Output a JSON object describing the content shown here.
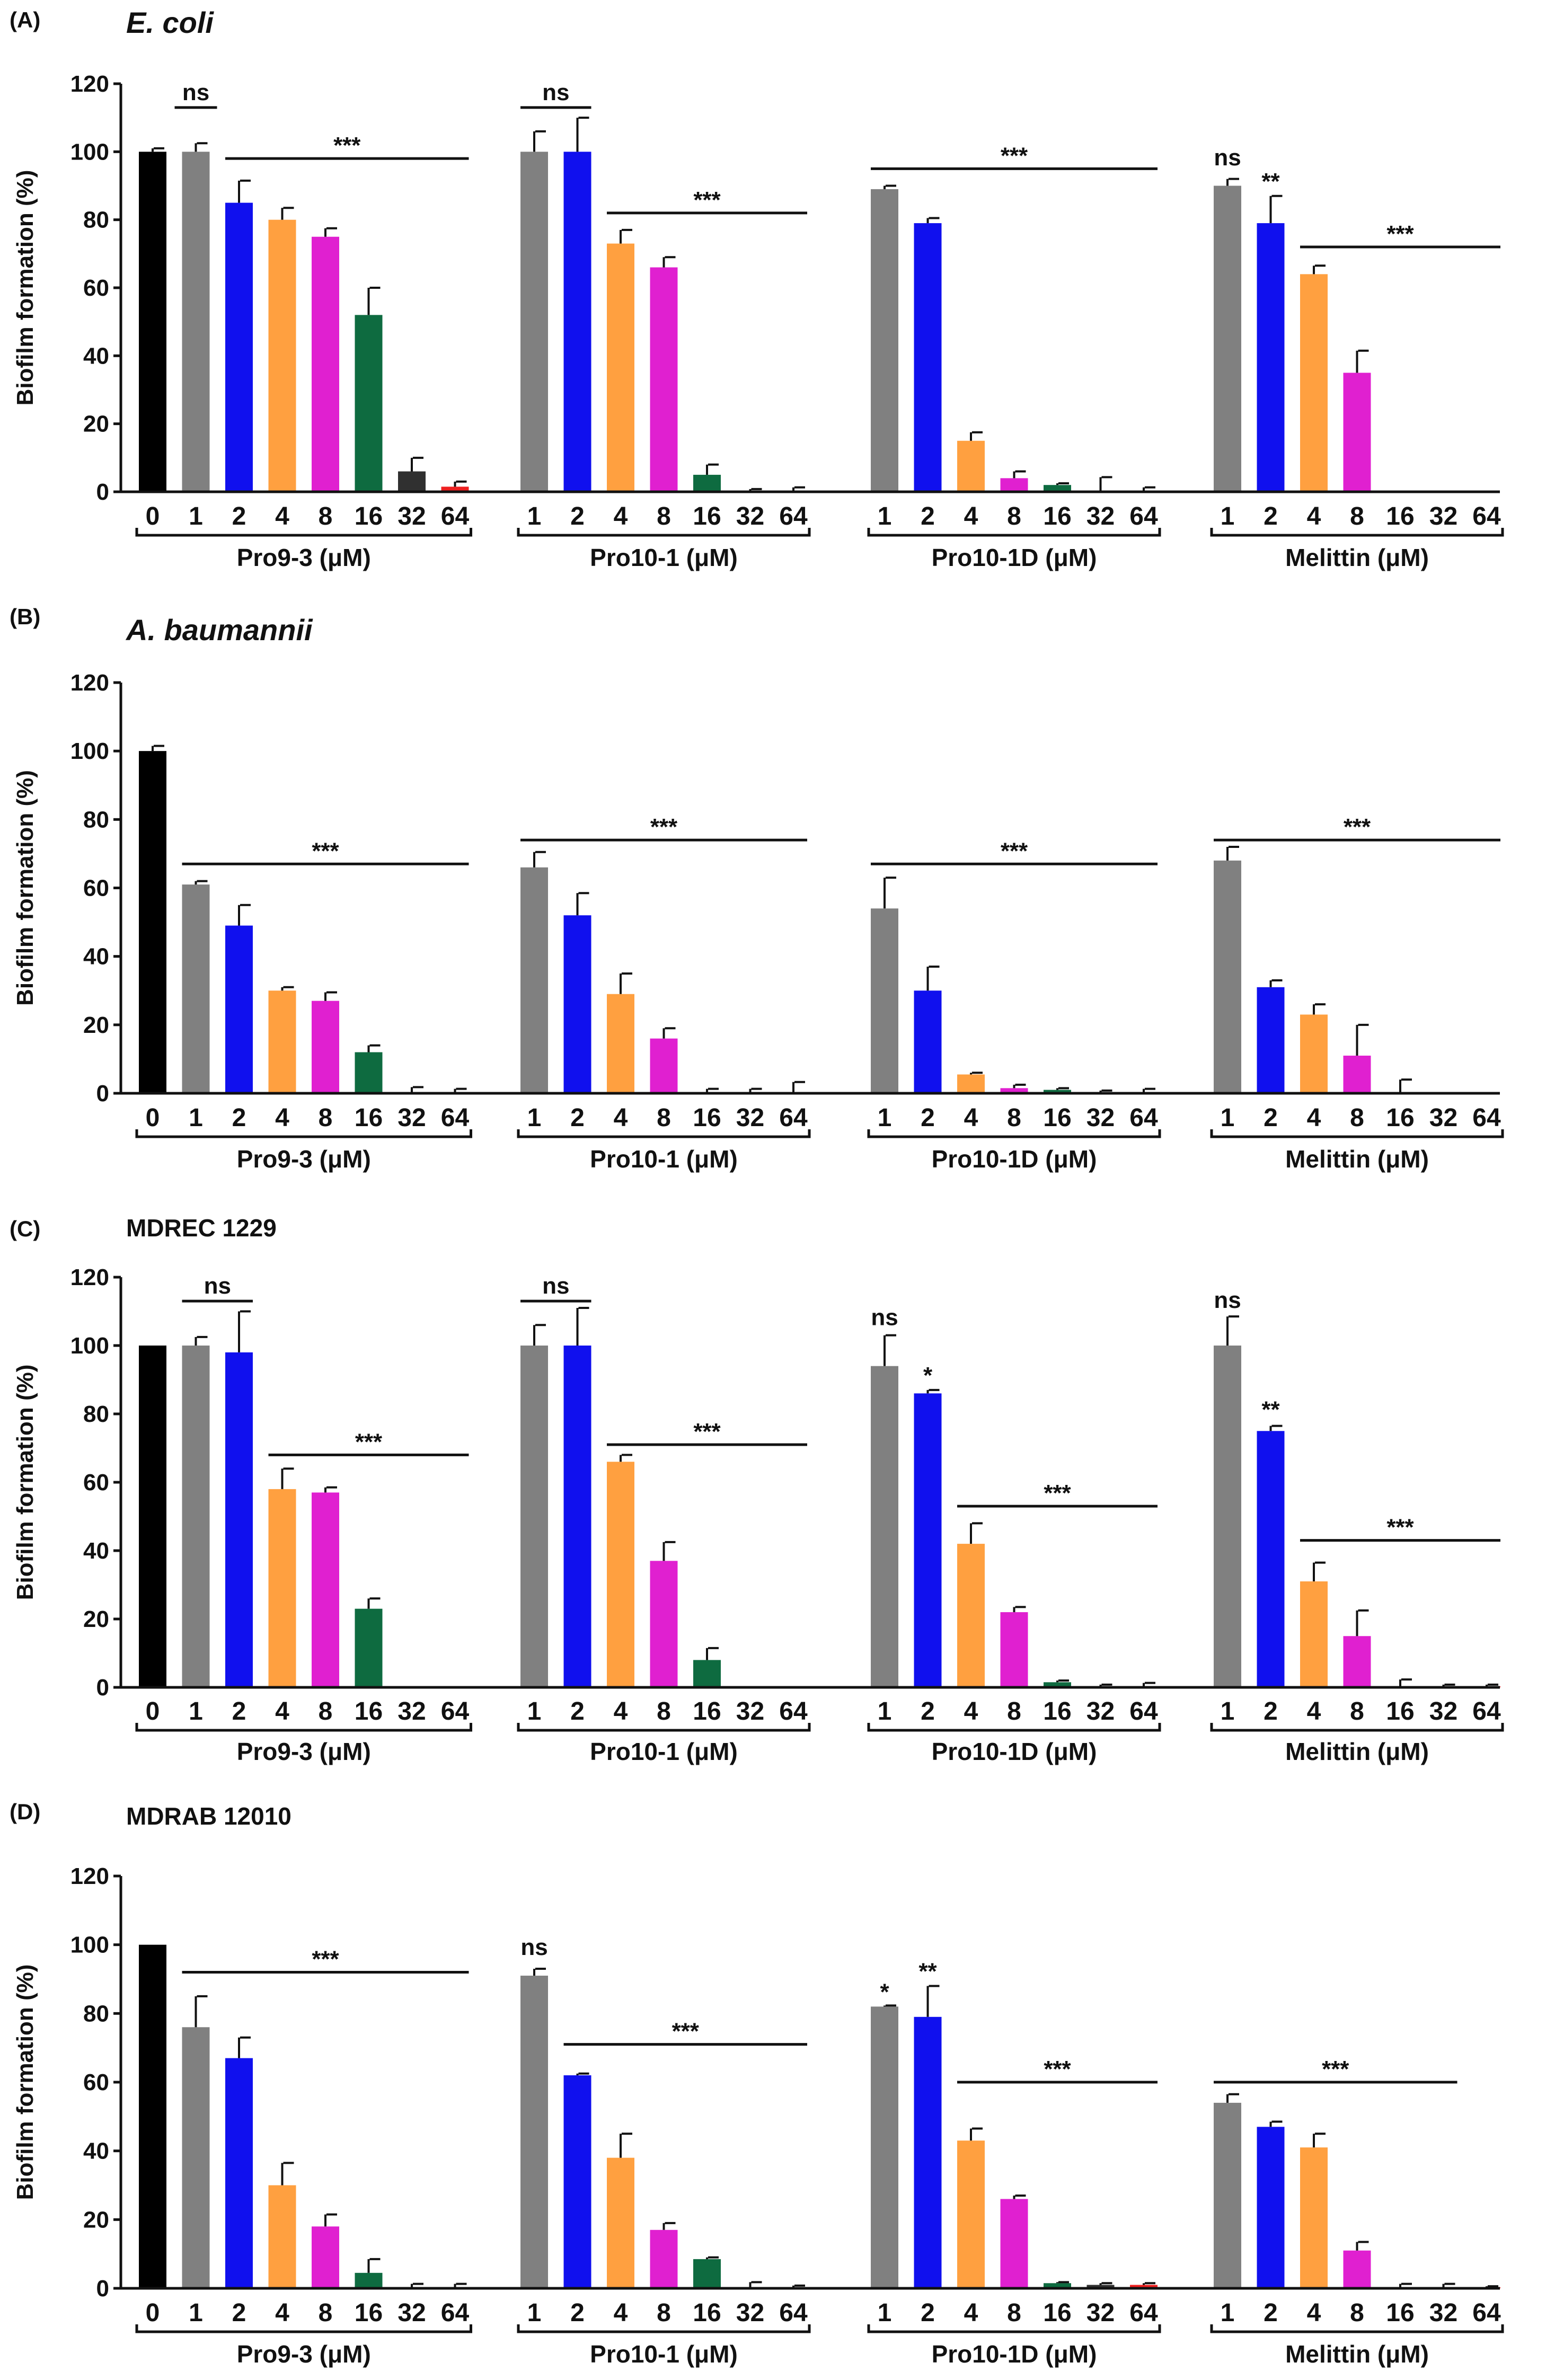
{
  "chart_data": [
    {
      "type": "bar",
      "panel": "(A)",
      "title": "E. coli",
      "title_style": "italic",
      "ylabel": "Biofilm formation (%)",
      "ylim": [
        0,
        120
      ],
      "yticks": [
        "0",
        "20",
        "40",
        "60",
        "80",
        "100",
        "120"
      ],
      "colors": {
        "0": "#000000",
        "1": "#808080",
        "2": "#1010ee",
        "4": "#ffa040",
        "8": "#e020d0",
        "16": "#0e6b40",
        "32": "#303030",
        "64": "#ee2020"
      },
      "groups": [
        {
          "label": "Pro9-3 (μM)",
          "categories": [
            "0",
            "1",
            "2",
            "4",
            "8",
            "16",
            "32",
            "64"
          ],
          "values": [
            100,
            100,
            85,
            80,
            75,
            52,
            6,
            1.5
          ],
          "errors": [
            1,
            2.5,
            6.5,
            3.5,
            2.5,
            8,
            4,
            1.5
          ]
        },
        {
          "label": "Pro10-1 (μM)",
          "categories": [
            "1",
            "2",
            "4",
            "8",
            "16",
            "32",
            "64"
          ],
          "values": [
            100,
            100,
            73,
            66,
            5,
            0.3,
            0.3
          ],
          "errors": [
            6,
            10,
            4,
            3,
            3,
            0.5,
            1
          ]
        },
        {
          "label": "Pro10-1D (μM)",
          "categories": [
            "1",
            "2",
            "4",
            "8",
            "16",
            "32",
            "64"
          ],
          "values": [
            89,
            79,
            15,
            4,
            2,
            0.3,
            0.3
          ],
          "errors": [
            1,
            1.5,
            2.5,
            2,
            0.5,
            4,
            1
          ]
        },
        {
          "label": "Melittin (μM)",
          "categories": [
            "1",
            "2",
            "4",
            "8",
            "16",
            "32",
            "64"
          ],
          "values": [
            90,
            79,
            64,
            35,
            0,
            0,
            0
          ],
          "errors": [
            2,
            8,
            2.5,
            6.5,
            0,
            0,
            0
          ]
        }
      ],
      "annotations": [
        {
          "text": "ns",
          "type": "line",
          "group": 0,
          "from": 1,
          "to": 1,
          "level": 113
        },
        {
          "text": "***",
          "type": "line",
          "group": 0,
          "from": 2,
          "to": 7,
          "level": 98
        },
        {
          "text": "ns",
          "type": "line",
          "group": 1,
          "from": 0,
          "to": 1,
          "level": 113
        },
        {
          "text": "***",
          "type": "line",
          "group": 1,
          "from": 2,
          "to": 6,
          "level": 82
        },
        {
          "text": "***",
          "type": "line",
          "group": 2,
          "from": 0,
          "to": 6,
          "level": 95
        },
        {
          "text": "ns",
          "type": "mark",
          "group": 3,
          "at": 0,
          "level": 96
        },
        {
          "text": "**",
          "type": "mark",
          "group": 3,
          "at": 1,
          "level": 89
        },
        {
          "text": "***",
          "type": "line",
          "group": 3,
          "from": 2,
          "to": 6,
          "level": 72
        }
      ]
    },
    {
      "type": "bar",
      "panel": "(B)",
      "title": "A. baumannii",
      "title_style": "italic",
      "ylabel": "Biofilm formation (%)",
      "ylim": [
        0,
        120
      ],
      "yticks": [
        "0",
        "20",
        "40",
        "60",
        "80",
        "100",
        "120"
      ],
      "colors": {
        "0": "#000000",
        "1": "#808080",
        "2": "#1010ee",
        "4": "#ffa040",
        "8": "#e020d0",
        "16": "#0e6b40",
        "32": "#303030",
        "64": "#ee2020"
      },
      "groups": [
        {
          "label": "Pro9-3 (μM)",
          "categories": [
            "0",
            "1",
            "2",
            "4",
            "8",
            "16",
            "32",
            "64"
          ],
          "values": [
            100,
            61,
            49,
            30,
            27,
            12,
            0.3,
            0.3
          ],
          "errors": [
            1.5,
            1,
            6,
            1,
            2.5,
            2,
            1.5,
            1
          ]
        },
        {
          "label": "Pro10-1 (μM)",
          "categories": [
            "1",
            "2",
            "4",
            "8",
            "16",
            "32",
            "64"
          ],
          "values": [
            66,
            52,
            29,
            16,
            0.3,
            0.3,
            0.3
          ],
          "errors": [
            4.5,
            6.5,
            6,
            3,
            1,
            1,
            3
          ]
        },
        {
          "label": "Pro10-1D (μM)",
          "categories": [
            "1",
            "2",
            "4",
            "8",
            "16",
            "32",
            "64"
          ],
          "values": [
            54,
            30,
            5.5,
            1.5,
            1,
            0.3,
            0.3
          ],
          "errors": [
            9,
            7,
            0.5,
            1,
            0.5,
            0.5,
            1
          ]
        },
        {
          "label": "Melittin (μM)",
          "categories": [
            "1",
            "2",
            "4",
            "8",
            "16",
            "32",
            "64"
          ],
          "values": [
            68,
            31,
            23,
            11,
            0,
            0,
            0
          ],
          "errors": [
            4,
            2,
            3,
            9,
            4,
            0,
            0
          ]
        }
      ],
      "annotations": [
        {
          "text": "***",
          "type": "line",
          "group": 0,
          "from": 1,
          "to": 7,
          "level": 67
        },
        {
          "text": "***",
          "type": "line",
          "group": 1,
          "from": 0,
          "to": 6,
          "level": 74
        },
        {
          "text": "***",
          "type": "line",
          "group": 2,
          "from": 0,
          "to": 6,
          "level": 67
        },
        {
          "text": "***",
          "type": "line",
          "group": 3,
          "from": 0,
          "to": 6,
          "level": 74
        }
      ]
    },
    {
      "type": "bar",
      "panel": "(C)",
      "title": "MDREC 1229",
      "title_style": "normal",
      "ylabel": "Biofilm formation (%)",
      "ylim": [
        0,
        120
      ],
      "yticks": [
        "0",
        "20",
        "40",
        "60",
        "80",
        "100",
        "120"
      ],
      "colors": {
        "0": "#000000",
        "1": "#808080",
        "2": "#1010ee",
        "4": "#ffa040",
        "8": "#e020d0",
        "16": "#0e6b40",
        "32": "#303030",
        "64": "#ee2020"
      },
      "groups": [
        {
          "label": "Pro9-3 (μM)",
          "categories": [
            "0",
            "1",
            "2",
            "4",
            "8",
            "16",
            "32",
            "64"
          ],
          "values": [
            100,
            100,
            98,
            58,
            57,
            23,
            0.3,
            0
          ],
          "errors": [
            0,
            2.5,
            12,
            6,
            1.5,
            3,
            0,
            0
          ]
        },
        {
          "label": "Pro10-1 (μM)",
          "categories": [
            "1",
            "2",
            "4",
            "8",
            "16",
            "32",
            "64"
          ],
          "values": [
            100,
            100,
            66,
            37,
            8,
            0.3,
            0.3
          ],
          "errors": [
            6,
            11,
            2,
            5.5,
            3.5,
            0,
            0
          ]
        },
        {
          "label": "Pro10-1D (μM)",
          "categories": [
            "1",
            "2",
            "4",
            "8",
            "16",
            "32",
            "64"
          ],
          "values": [
            94,
            86,
            42,
            22,
            1.5,
            0.3,
            0.3
          ],
          "errors": [
            9,
            1,
            6,
            1.5,
            0.5,
            0.5,
            1
          ]
        },
        {
          "label": "Melittin (μM)",
          "categories": [
            "1",
            "2",
            "4",
            "8",
            "16",
            "32",
            "64"
          ],
          "values": [
            100,
            75,
            31,
            15,
            0.3,
            0.3,
            0.3
          ],
          "errors": [
            8.5,
            1.5,
            5.5,
            7.5,
            2,
            0.5,
            0.5
          ]
        }
      ],
      "annotations": [
        {
          "text": "ns",
          "type": "line",
          "group": 0,
          "from": 1,
          "to": 2,
          "level": 113
        },
        {
          "text": "***",
          "type": "line",
          "group": 0,
          "from": 3,
          "to": 7,
          "level": 68
        },
        {
          "text": "ns",
          "type": "line",
          "group": 1,
          "from": 0,
          "to": 1,
          "level": 113
        },
        {
          "text": "***",
          "type": "line",
          "group": 1,
          "from": 2,
          "to": 6,
          "level": 71
        },
        {
          "text": "ns",
          "type": "mark",
          "group": 2,
          "at": 0,
          "level": 106
        },
        {
          "text": "*",
          "type": "mark",
          "group": 2,
          "at": 1,
          "level": 89
        },
        {
          "text": "***",
          "type": "line",
          "group": 2,
          "from": 2,
          "to": 6,
          "level": 53
        },
        {
          "text": "ns",
          "type": "mark",
          "group": 3,
          "at": 0,
          "level": 111
        },
        {
          "text": "**",
          "type": "mark",
          "group": 3,
          "at": 1,
          "level": 79
        },
        {
          "text": "***",
          "type": "line",
          "group": 3,
          "from": 2,
          "to": 6,
          "level": 43
        }
      ]
    },
    {
      "type": "bar",
      "panel": "(D)",
      "title": "MDRAB 12010",
      "title_style": "normal",
      "ylabel": "Biofilm formation (%)",
      "ylim": [
        0,
        120
      ],
      "yticks": [
        "0",
        "20",
        "40",
        "60",
        "80",
        "100",
        "120"
      ],
      "colors": {
        "0": "#000000",
        "1": "#808080",
        "2": "#1010ee",
        "4": "#ffa040",
        "8": "#e020d0",
        "16": "#0e6b40",
        "32": "#303030",
        "64": "#ee2020"
      },
      "groups": [
        {
          "label": "Pro9-3 (μM)",
          "categories": [
            "0",
            "1",
            "2",
            "4",
            "8",
            "16",
            "32",
            "64"
          ],
          "values": [
            100,
            76,
            67,
            30,
            18,
            4.5,
            0.3,
            0.3
          ],
          "errors": [
            0,
            9,
            6,
            6.5,
            3.5,
            4,
            1,
            1
          ]
        },
        {
          "label": "Pro10-1 (μM)",
          "categories": [
            "1",
            "2",
            "4",
            "8",
            "16",
            "32",
            "64"
          ],
          "values": [
            91,
            62,
            38,
            17,
            8.5,
            0.3,
            0.3
          ],
          "errors": [
            2,
            0.5,
            7,
            2,
            0.5,
            1.5,
            0.5
          ]
        },
        {
          "label": "Pro10-1D (μM)",
          "categories": [
            "1",
            "2",
            "4",
            "8",
            "16",
            "32",
            "64"
          ],
          "values": [
            82,
            79,
            43,
            26,
            1.5,
            1,
            1
          ],
          "errors": [
            0.3,
            9,
            3.5,
            1,
            0.3,
            0.5,
            0.5
          ]
        },
        {
          "label": "Melittin (μM)",
          "categories": [
            "1",
            "2",
            "4",
            "8",
            "16",
            "32",
            "64"
          ],
          "values": [
            54,
            47,
            41,
            11,
            0.3,
            0.3,
            0.3
          ],
          "errors": [
            2.5,
            1.5,
            4,
            2.5,
            1,
            1,
            0.3
          ]
        }
      ],
      "annotations": [
        {
          "text": "***",
          "type": "line",
          "group": 0,
          "from": 1,
          "to": 7,
          "level": 92
        },
        {
          "text": "ns",
          "type": "mark",
          "group": 1,
          "at": 0,
          "level": 97
        },
        {
          "text": "***",
          "type": "line",
          "group": 1,
          "from": 1,
          "to": 6,
          "level": 71
        },
        {
          "text": "*",
          "type": "mark",
          "group": 2,
          "at": 0,
          "level": 84
        },
        {
          "text": "**",
          "type": "mark",
          "group": 2,
          "at": 1,
          "level": 90
        },
        {
          "text": "***",
          "type": "line",
          "group": 2,
          "from": 2,
          "to": 6,
          "level": 60
        },
        {
          "text": "***",
          "type": "line",
          "group": 3,
          "from": 0,
          "to": 5,
          "level": 60
        }
      ]
    }
  ]
}
